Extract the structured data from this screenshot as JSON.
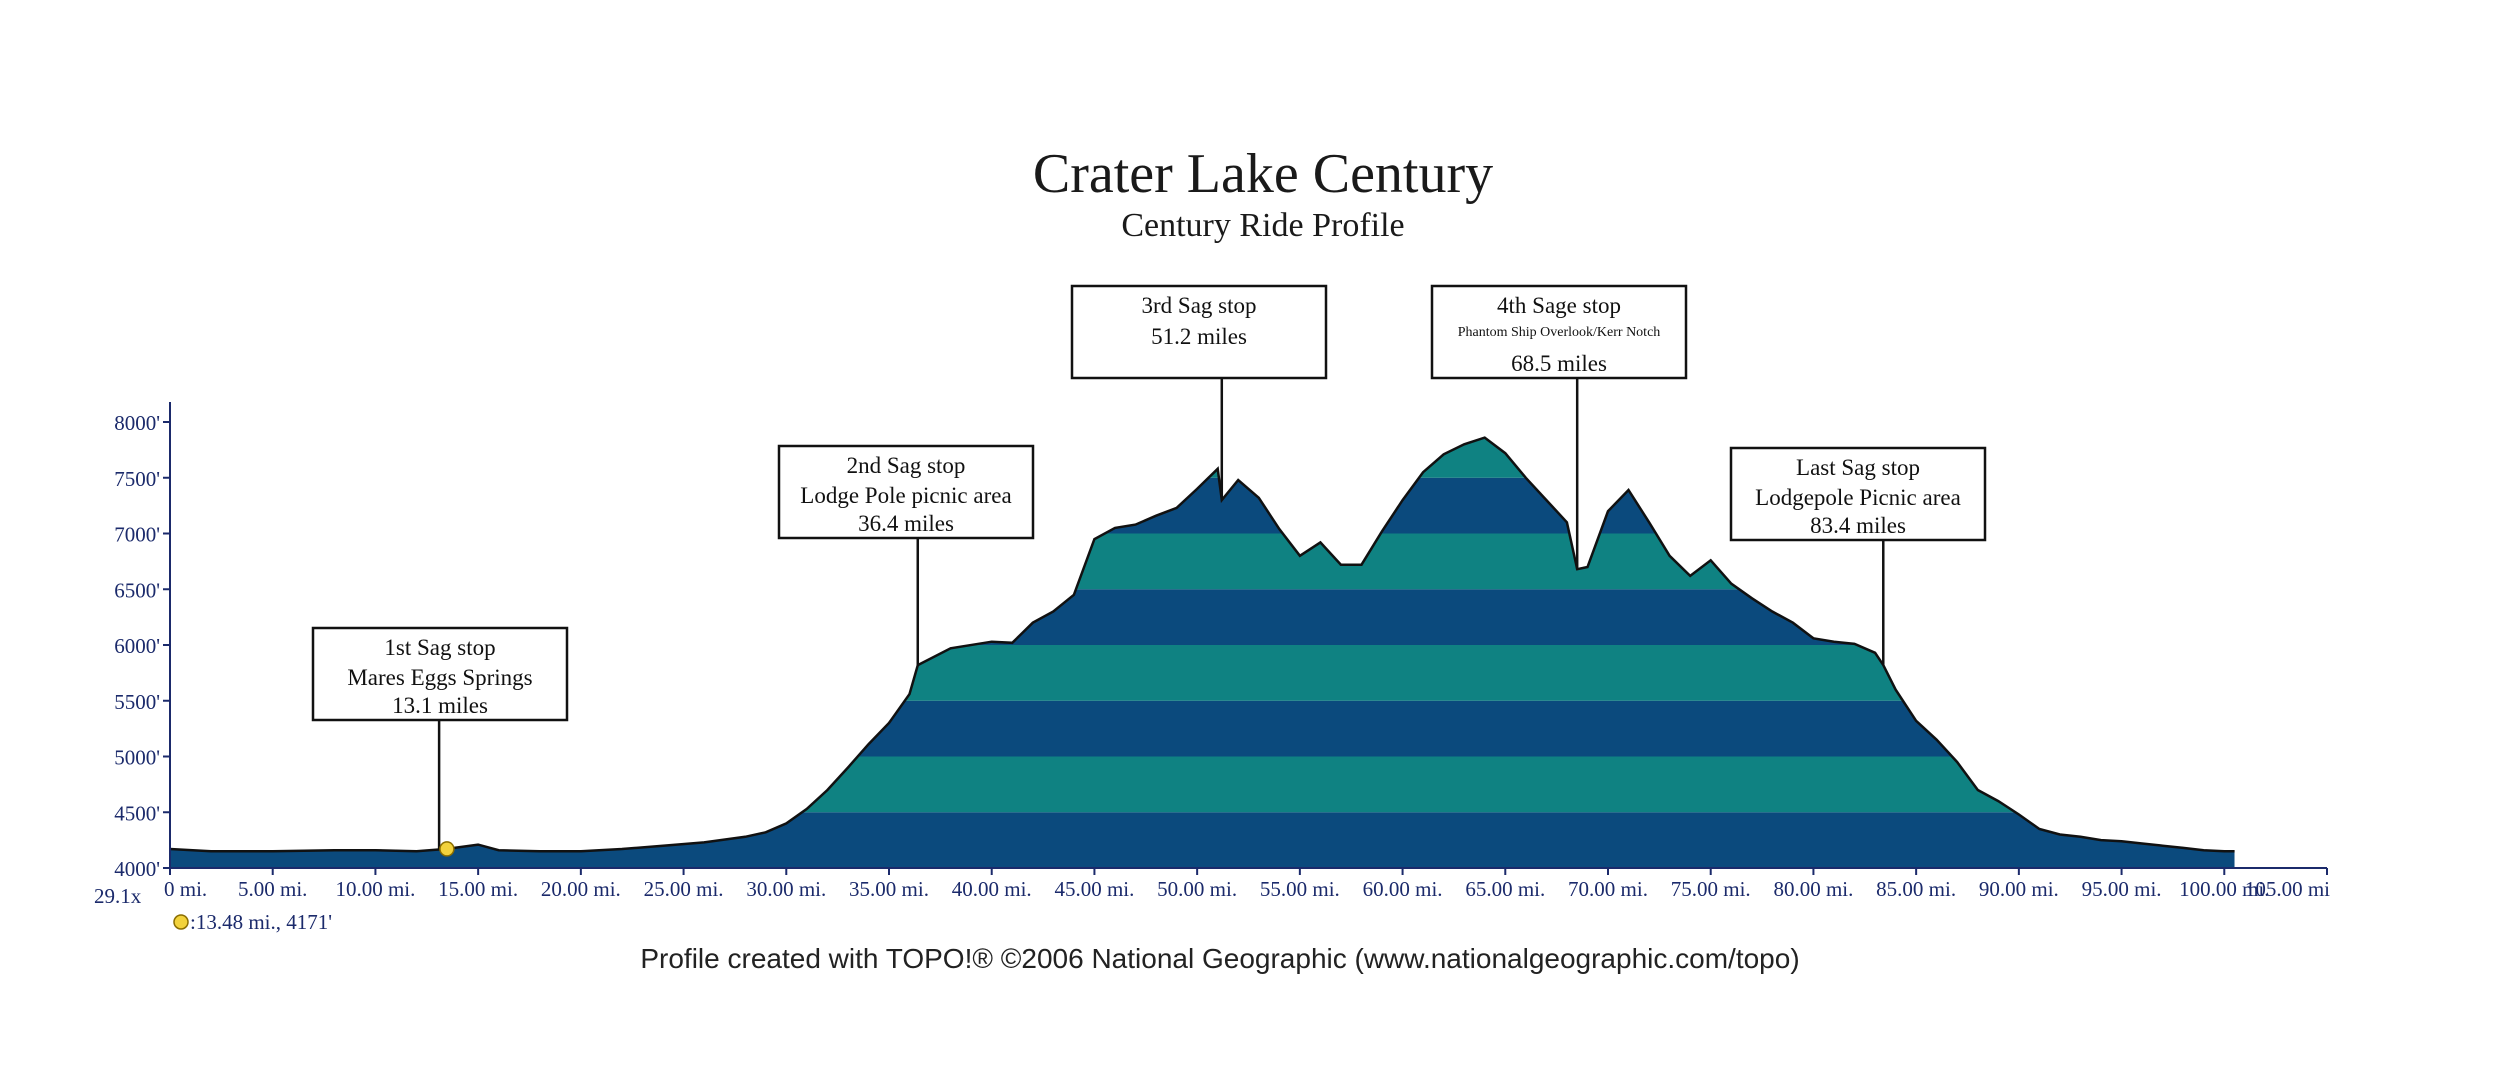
{
  "chart_data": {
    "type": "area",
    "title": "Crater Lake Century",
    "subtitle": "Century Ride Profile",
    "xlabel": "",
    "ylabel": "",
    "xlim": [
      0,
      105
    ],
    "ylim": [
      4000,
      8000
    ],
    "vertical_exaggeration": "29.1x",
    "cursor_readout": ":13.48 mi., 4171'",
    "cursor_point": {
      "distance_mi": 13.48,
      "elevation_ft": 4171
    },
    "credit": "Profile created with TOPO!® ©2006 National Geographic (www.nationalgeographic.com/topo)",
    "band_colors": [
      "#0b4a7d",
      "#0f8282"
    ],
    "outline_color": "#111111",
    "marker_color": "#f2d23c",
    "y_ticks": [
      {
        "value": 8000,
        "label": "8000'"
      },
      {
        "value": 7500,
        "label": "7500'"
      },
      {
        "value": 7000,
        "label": "7000'"
      },
      {
        "value": 6500,
        "label": "6500'"
      },
      {
        "value": 6000,
        "label": "6000'"
      },
      {
        "value": 5500,
        "label": "5500'"
      },
      {
        "value": 5000,
        "label": "5000'"
      },
      {
        "value": 4500,
        "label": "4500'"
      },
      {
        "value": 4000,
        "label": "4000'"
      }
    ],
    "x_ticks": [
      {
        "value": 0,
        "label": "0 mi."
      },
      {
        "value": 5,
        "label": "5.00 mi."
      },
      {
        "value": 10,
        "label": "10.00 mi."
      },
      {
        "value": 15,
        "label": "15.00 mi."
      },
      {
        "value": 20,
        "label": "20.00 mi."
      },
      {
        "value": 25,
        "label": "25.00 mi."
      },
      {
        "value": 30,
        "label": "30.00 mi."
      },
      {
        "value": 35,
        "label": "35.00 mi."
      },
      {
        "value": 40,
        "label": "40.00 mi."
      },
      {
        "value": 45,
        "label": "45.00 mi."
      },
      {
        "value": 50,
        "label": "50.00 mi."
      },
      {
        "value": 55,
        "label": "55.00 mi."
      },
      {
        "value": 60,
        "label": "60.00 mi."
      },
      {
        "value": 65,
        "label": "65.00 mi."
      },
      {
        "value": 70,
        "label": "70.00 mi."
      },
      {
        "value": 75,
        "label": "75.00 mi."
      },
      {
        "value": 80,
        "label": "80.00 mi."
      },
      {
        "value": 85,
        "label": "85.00 mi."
      },
      {
        "value": 90,
        "label": "90.00 mi."
      },
      {
        "value": 95,
        "label": "95.00 mi."
      },
      {
        "value": 100,
        "label": "100.00 mi."
      },
      {
        "value": 105,
        "label": "105.00 mi"
      }
    ],
    "profile": {
      "x": [
        0,
        2,
        5,
        8,
        10,
        12,
        13.48,
        15,
        16,
        18,
        20,
        22,
        24,
        26,
        28,
        29,
        30,
        31,
        32,
        33,
        34,
        35,
        36,
        36.4,
        38,
        40,
        41,
        42,
        43,
        44,
        45,
        46,
        47,
        48,
        49,
        50,
        51,
        51.2,
        52,
        53,
        54,
        55,
        56,
        57,
        58,
        59,
        60,
        61,
        62,
        63,
        64,
        65,
        66,
        67,
        68,
        68.5,
        69,
        70,
        71,
        72,
        73,
        74,
        75,
        76,
        77,
        78,
        79,
        80,
        81,
        82,
        83,
        83.4,
        84,
        85,
        86,
        87,
        88,
        89,
        90,
        91,
        92,
        93,
        94,
        95,
        96,
        97,
        98,
        99,
        100,
        100.5
      ],
      "y": [
        4170,
        4150,
        4150,
        4160,
        4160,
        4150,
        4171,
        4210,
        4160,
        4150,
        4150,
        4170,
        4200,
        4230,
        4280,
        4320,
        4400,
        4530,
        4700,
        4900,
        5110,
        5300,
        5560,
        5820,
        5970,
        6030,
        6020,
        6200,
        6300,
        6450,
        6950,
        7050,
        7080,
        7160,
        7230,
        7400,
        7580,
        7300,
        7480,
        7320,
        7040,
        6800,
        6920,
        6720,
        6720,
        7020,
        7300,
        7550,
        7710,
        7800,
        7860,
        7720,
        7500,
        7300,
        7100,
        6680,
        6700,
        7200,
        7390,
        7100,
        6800,
        6620,
        6760,
        6550,
        6420,
        6300,
        6200,
        6060,
        6030,
        6010,
        5930,
        5820,
        5600,
        5320,
        5150,
        4950,
        4700,
        4600,
        4480,
        4350,
        4300,
        4280,
        4250,
        4240,
        4220,
        4200,
        4180,
        4160,
        4150,
        4150
      ]
    },
    "annotations": [
      {
        "title": "1st Sag stop",
        "detail": "Mares Eggs Springs",
        "distance": "13.1 miles",
        "mile": 13.1,
        "elevation": 4171
      },
      {
        "title": "2nd Sag stop",
        "detail": "Lodge Pole picnic area",
        "distance": "36.4 miles",
        "mile": 36.4,
        "elevation": 5820
      },
      {
        "title": "3rd Sag stop",
        "detail": "",
        "distance": "51.2 miles",
        "mile": 51.2,
        "elevation": 7300
      },
      {
        "title": "4th Sage stop",
        "detail": "Phantom Ship Overlook/Kerr Notch",
        "distance": "68.5 miles",
        "mile": 68.5,
        "elevation": 6680
      },
      {
        "title": "Last Sag stop",
        "detail": "Lodgepole Picnic area",
        "distance": "83.4 miles",
        "mile": 83.4,
        "elevation": 5820
      }
    ]
  }
}
